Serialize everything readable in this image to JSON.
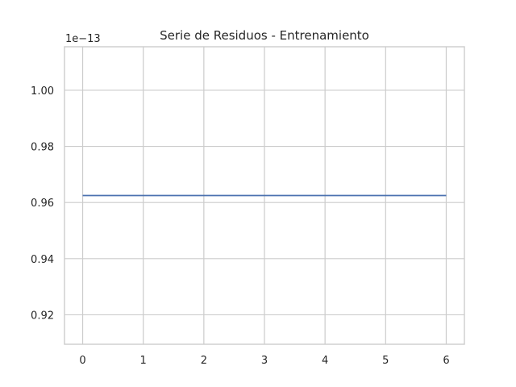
{
  "chart_data": {
    "type": "line",
    "title": "Serie de Residuos - Entrenamiento",
    "xlabel": "",
    "ylabel": "",
    "offset_label": "1e−13",
    "x": [
      0,
      1,
      2,
      3,
      4,
      5,
      6
    ],
    "series": [
      {
        "values": [
          0.9625,
          0.9625,
          0.9625,
          0.9625,
          0.9625,
          0.9625,
          0.9625
        ],
        "color": "#4c72b0"
      }
    ],
    "xlim": [
      -0.3,
      6.3
    ],
    "ylim": [
      0.9095,
      1.0155
    ],
    "xticks": [
      0,
      1,
      2,
      3,
      4,
      5,
      6
    ],
    "xtick_labels": [
      "0",
      "1",
      "2",
      "3",
      "4",
      "5",
      "6"
    ],
    "yticks": [
      0.92,
      0.94,
      0.96,
      0.98,
      1.0
    ],
    "ytick_labels": [
      "0.92",
      "0.94",
      "0.96",
      "0.98",
      "1.00"
    ],
    "grid": true,
    "legend": false
  }
}
